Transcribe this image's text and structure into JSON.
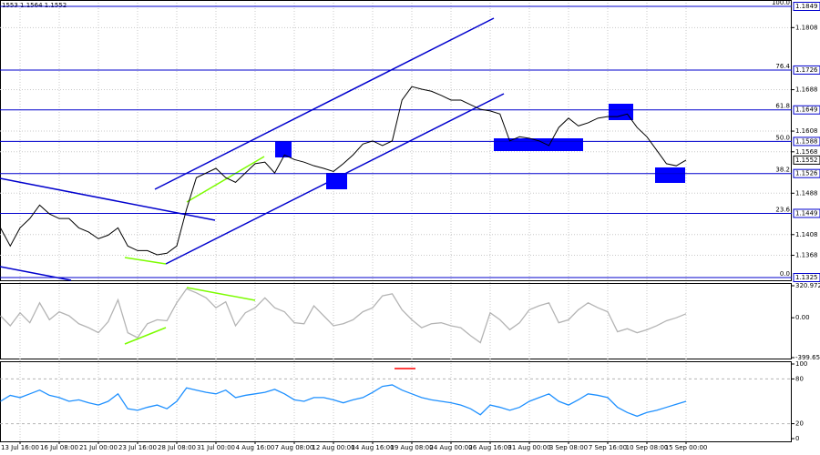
{
  "chart_data": [
    {
      "type": "line",
      "title": "1553 1.1564 1.1552",
      "color": "#000000",
      "categories": [
        null,
        null,
        "13 Jul 16:00",
        null,
        null,
        null,
        "16 Jul 08:00",
        null,
        null,
        null,
        "21 Jul 00:00",
        null,
        null,
        null,
        "23 Jul 16:00",
        null,
        null,
        null,
        "28 Jul 08:00",
        null,
        null,
        null,
        "31 Jul 00:00",
        null,
        null,
        null,
        "4 Aug 16:00",
        null,
        null,
        null,
        "7 Aug 08:00",
        null,
        null,
        null,
        "12 Aug 00:00",
        null,
        null,
        null,
        "14 Aug 16:00",
        null,
        null,
        null,
        "19 Aug 08:00",
        null,
        null,
        null,
        "24 Aug 00:00",
        null,
        null,
        null,
        "26 Aug 16:00",
        null,
        null,
        null,
        "31 Aug 00:00",
        null,
        null,
        null,
        "3 Sep 08:00",
        null,
        null,
        null,
        "7 Sep 16:00",
        null,
        null,
        null,
        "10 Sep 08:00",
        null,
        null,
        null,
        "15 Sep 00:00"
      ],
      "values": [
        1.1421,
        1.1386,
        1.1421,
        1.1439,
        1.1465,
        1.1448,
        1.1439,
        1.1439,
        1.1421,
        1.1413,
        1.14,
        1.1407,
        1.1421,
        1.1386,
        1.1377,
        1.1377,
        1.1369,
        1.1372,
        1.1386,
        1.1457,
        1.1518,
        1.1527,
        1.1536,
        1.1518,
        1.1509,
        1.1527,
        1.1545,
        1.1548,
        1.1527,
        1.1562,
        1.1553,
        1.1548,
        1.1541,
        1.1536,
        1.153,
        1.1545,
        1.1562,
        1.1583,
        1.1589,
        1.158,
        1.1589,
        1.1668,
        1.1694,
        1.1689,
        1.1685,
        1.1677,
        1.1668,
        1.1668,
        1.1659,
        1.165,
        1.1647,
        1.1641,
        1.1589,
        1.1597,
        1.1594,
        1.1589,
        1.158,
        1.1615,
        1.1633,
        1.1618,
        1.1624,
        1.1633,
        1.1636,
        1.1636,
        1.1641,
        1.1615,
        1.1597,
        1.1571,
        1.1545,
        1.1541,
        1.1552
      ],
      "ylim": [
        1.1325,
        1.1849
      ],
      "yticks": [
        1.1368,
        1.1408,
        1.1488,
        1.1568,
        1.1608,
        1.1688,
        1.1808
      ],
      "fib_levels": [
        {
          "label": "100.0",
          "price": 1.1849
        },
        {
          "label": "76.4",
          "price": 1.1726
        },
        {
          "label": "61.8",
          "price": 1.1649
        },
        {
          "label": "50.0",
          "price": 1.1588
        },
        {
          "label": "38.2",
          "price": 1.1526
        },
        {
          "label": "23.6",
          "price": 1.1449
        },
        {
          "label": "0.0",
          "price": 1.1325
        }
      ],
      "fib_color": "#0000cd",
      "last_price": 1.1552,
      "grid": true
    },
    {
      "type": "line",
      "color": "#b4b4b4",
      "values": [
        20,
        -80,
        50,
        -50,
        150,
        -20,
        60,
        20,
        -60,
        -100,
        -150,
        -40,
        180,
        -150,
        -200,
        -60,
        -20,
        -30,
        150,
        290,
        250,
        200,
        100,
        160,
        -80,
        50,
        100,
        200,
        100,
        60,
        -50,
        -60,
        120,
        20,
        -80,
        -60,
        -20,
        60,
        100,
        220,
        240,
        80,
        -20,
        -100,
        -60,
        -50,
        -80,
        -100,
        -180,
        -250,
        50,
        -20,
        -120,
        -50,
        80,
        120,
        150,
        -50,
        -20,
        80,
        150,
        100,
        60,
        -140,
        -110,
        -150,
        -120,
        -80,
        -30,
        0,
        40
      ],
      "ylim": [
        -399.652,
        320.9724
      ],
      "yticks": [
        -399.652,
        {
          "value": 0,
          "label": "0.00"
        },
        320.9724
      ],
      "grid": false
    },
    {
      "type": "line",
      "color": "#1e90ff",
      "values": [
        50,
        58,
        55,
        60,
        65,
        58,
        55,
        50,
        52,
        48,
        45,
        50,
        60,
        40,
        38,
        42,
        45,
        40,
        50,
        68,
        65,
        62,
        60,
        65,
        55,
        58,
        60,
        62,
        66,
        60,
        52,
        50,
        55,
        55,
        52,
        48,
        52,
        55,
        62,
        70,
        72,
        65,
        60,
        55,
        52,
        50,
        48,
        45,
        40,
        32,
        45,
        42,
        38,
        42,
        50,
        55,
        60,
        50,
        45,
        52,
        60,
        58,
        55,
        42,
        35,
        30,
        35,
        38,
        42,
        46,
        50
      ],
      "ylim": [
        0,
        100
      ],
      "yticks": [
        0,
        20,
        80,
        100
      ],
      "levels": [
        20,
        80
      ],
      "grid": false
    }
  ]
}
